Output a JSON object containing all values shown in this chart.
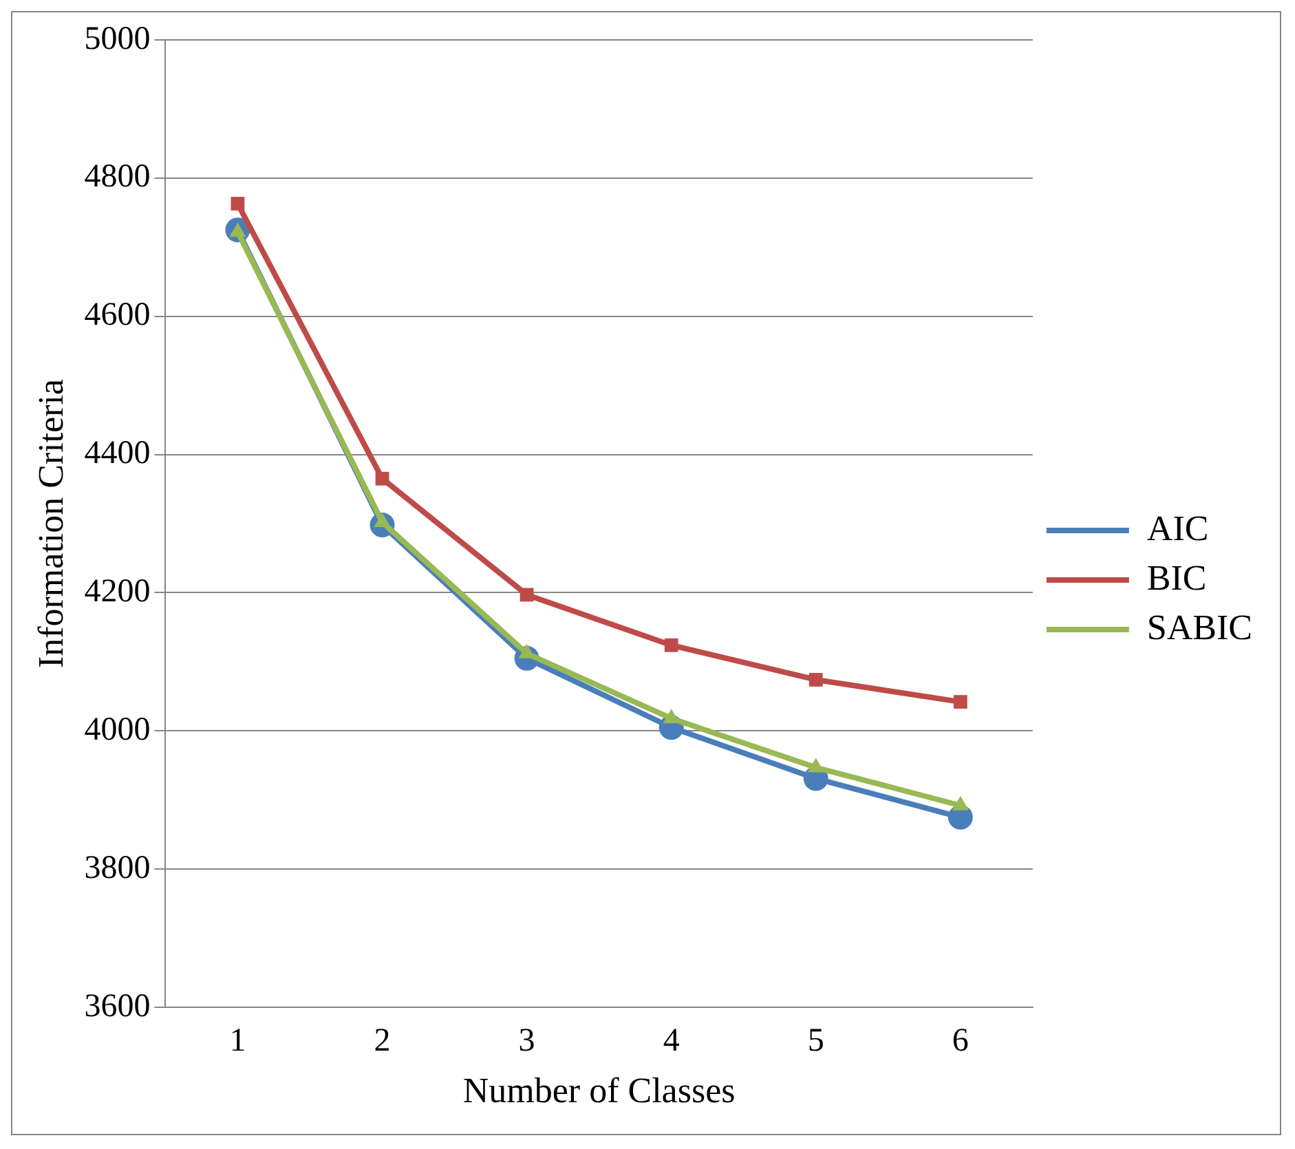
{
  "chart_data": {
    "type": "line",
    "xlabel": "Number of Classes",
    "ylabel": "Information Criteria",
    "categories": [
      "1",
      "2",
      "3",
      "4",
      "5",
      "6"
    ],
    "series": [
      {
        "name": "AIC",
        "color": "#4a7ebb",
        "marker": "circle",
        "values": [
          4725,
          4298,
          4105,
          4005,
          3931,
          3875
        ]
      },
      {
        "name": "BIC",
        "color": "#be4b48",
        "marker": "square",
        "values": [
          4763,
          4365,
          4197,
          4124,
          4074,
          4042
        ]
      },
      {
        "name": "SABIC",
        "color": "#98b954",
        "marker": "triangle",
        "values": [
          4722,
          4302,
          4112,
          4018,
          3947,
          3892
        ]
      }
    ],
    "ylim": [
      3600,
      5000
    ],
    "yticks": [
      3600,
      3800,
      4000,
      4200,
      4400,
      4600,
      4800,
      5000
    ],
    "grid": "y",
    "legend": "right",
    "line_style": "solid"
  }
}
